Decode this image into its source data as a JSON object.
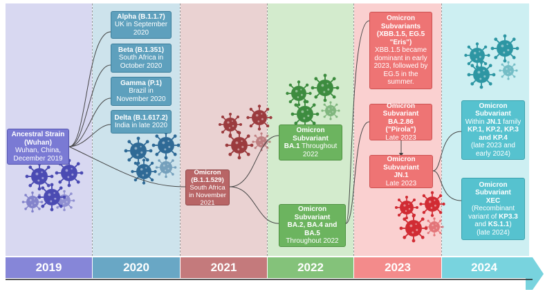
{
  "years": [
    "2019",
    "2020",
    "2021",
    "2022",
    "2023",
    "2024"
  ],
  "colors": {
    "2019": "#d8d8f1",
    "2020": "#cde3ec",
    "2021": "#ead2d2",
    "2022": "#d3ebcd",
    "2023": "#fad0d0",
    "2024": "#cdeff2"
  },
  "variants": {
    "ancestral": {
      "name": "Ancestral Strain (Wuhan)",
      "desc": "Wuhan, China, December 2019"
    },
    "alpha": {
      "name": "Alpha",
      "code": "(B.1.1.7)",
      "desc": "UK in September 2020"
    },
    "beta": {
      "name": "Beta (B.1.351)",
      "desc": "South Africa in October 2020"
    },
    "gamma": {
      "name": "Gamma (P.1)",
      "desc": "Brazil in November 2020"
    },
    "delta": {
      "name": "Delta (B.1.617.2)",
      "desc": "India in late 2020"
    },
    "omicron": {
      "name": "Omicron (B.1.1.529)",
      "desc": "South Africa in November 2021"
    },
    "ba1": {
      "name": "Omicron Subvariant",
      "code": "BA.1",
      "desc": "Throughout 2022"
    },
    "ba245": {
      "name": "Omicron Subvariant",
      "code": "BA.2, BA.4 and BA.5",
      "desc": "Throughout 2022"
    },
    "xbb": {
      "name": "Omicron Subvariants (XBB.1.5, EG.5 \"Eris\")",
      "desc": "XBB.1.5 became dominant in early 2023, followed by EG.5 in the summer."
    },
    "ba286": {
      "name": "Omicron Subvariant",
      "code": "BA.2.86 (\"Pirola\")",
      "desc": "Late 2023"
    },
    "jn1": {
      "name": "Omicron Subvariant",
      "code": "JN.1",
      "desc": "Late 2023"
    },
    "kp": {
      "name": "Omicron Subvariant",
      "pre": "Within ",
      "jn": "JN.1",
      "mid": " family ",
      "list": "KP.1, KP.2, KP.3 and KP.4",
      "desc": "(late 2023 and early 2024)"
    },
    "xec": {
      "name": "Omicron Subvariant",
      "code": "XEC",
      "pre": "(Recombinant variant of ",
      "a": "KP3.3",
      "and": " and ",
      "b": "KS.1.1",
      "post": ")",
      "desc": "(late 2024)"
    }
  }
}
